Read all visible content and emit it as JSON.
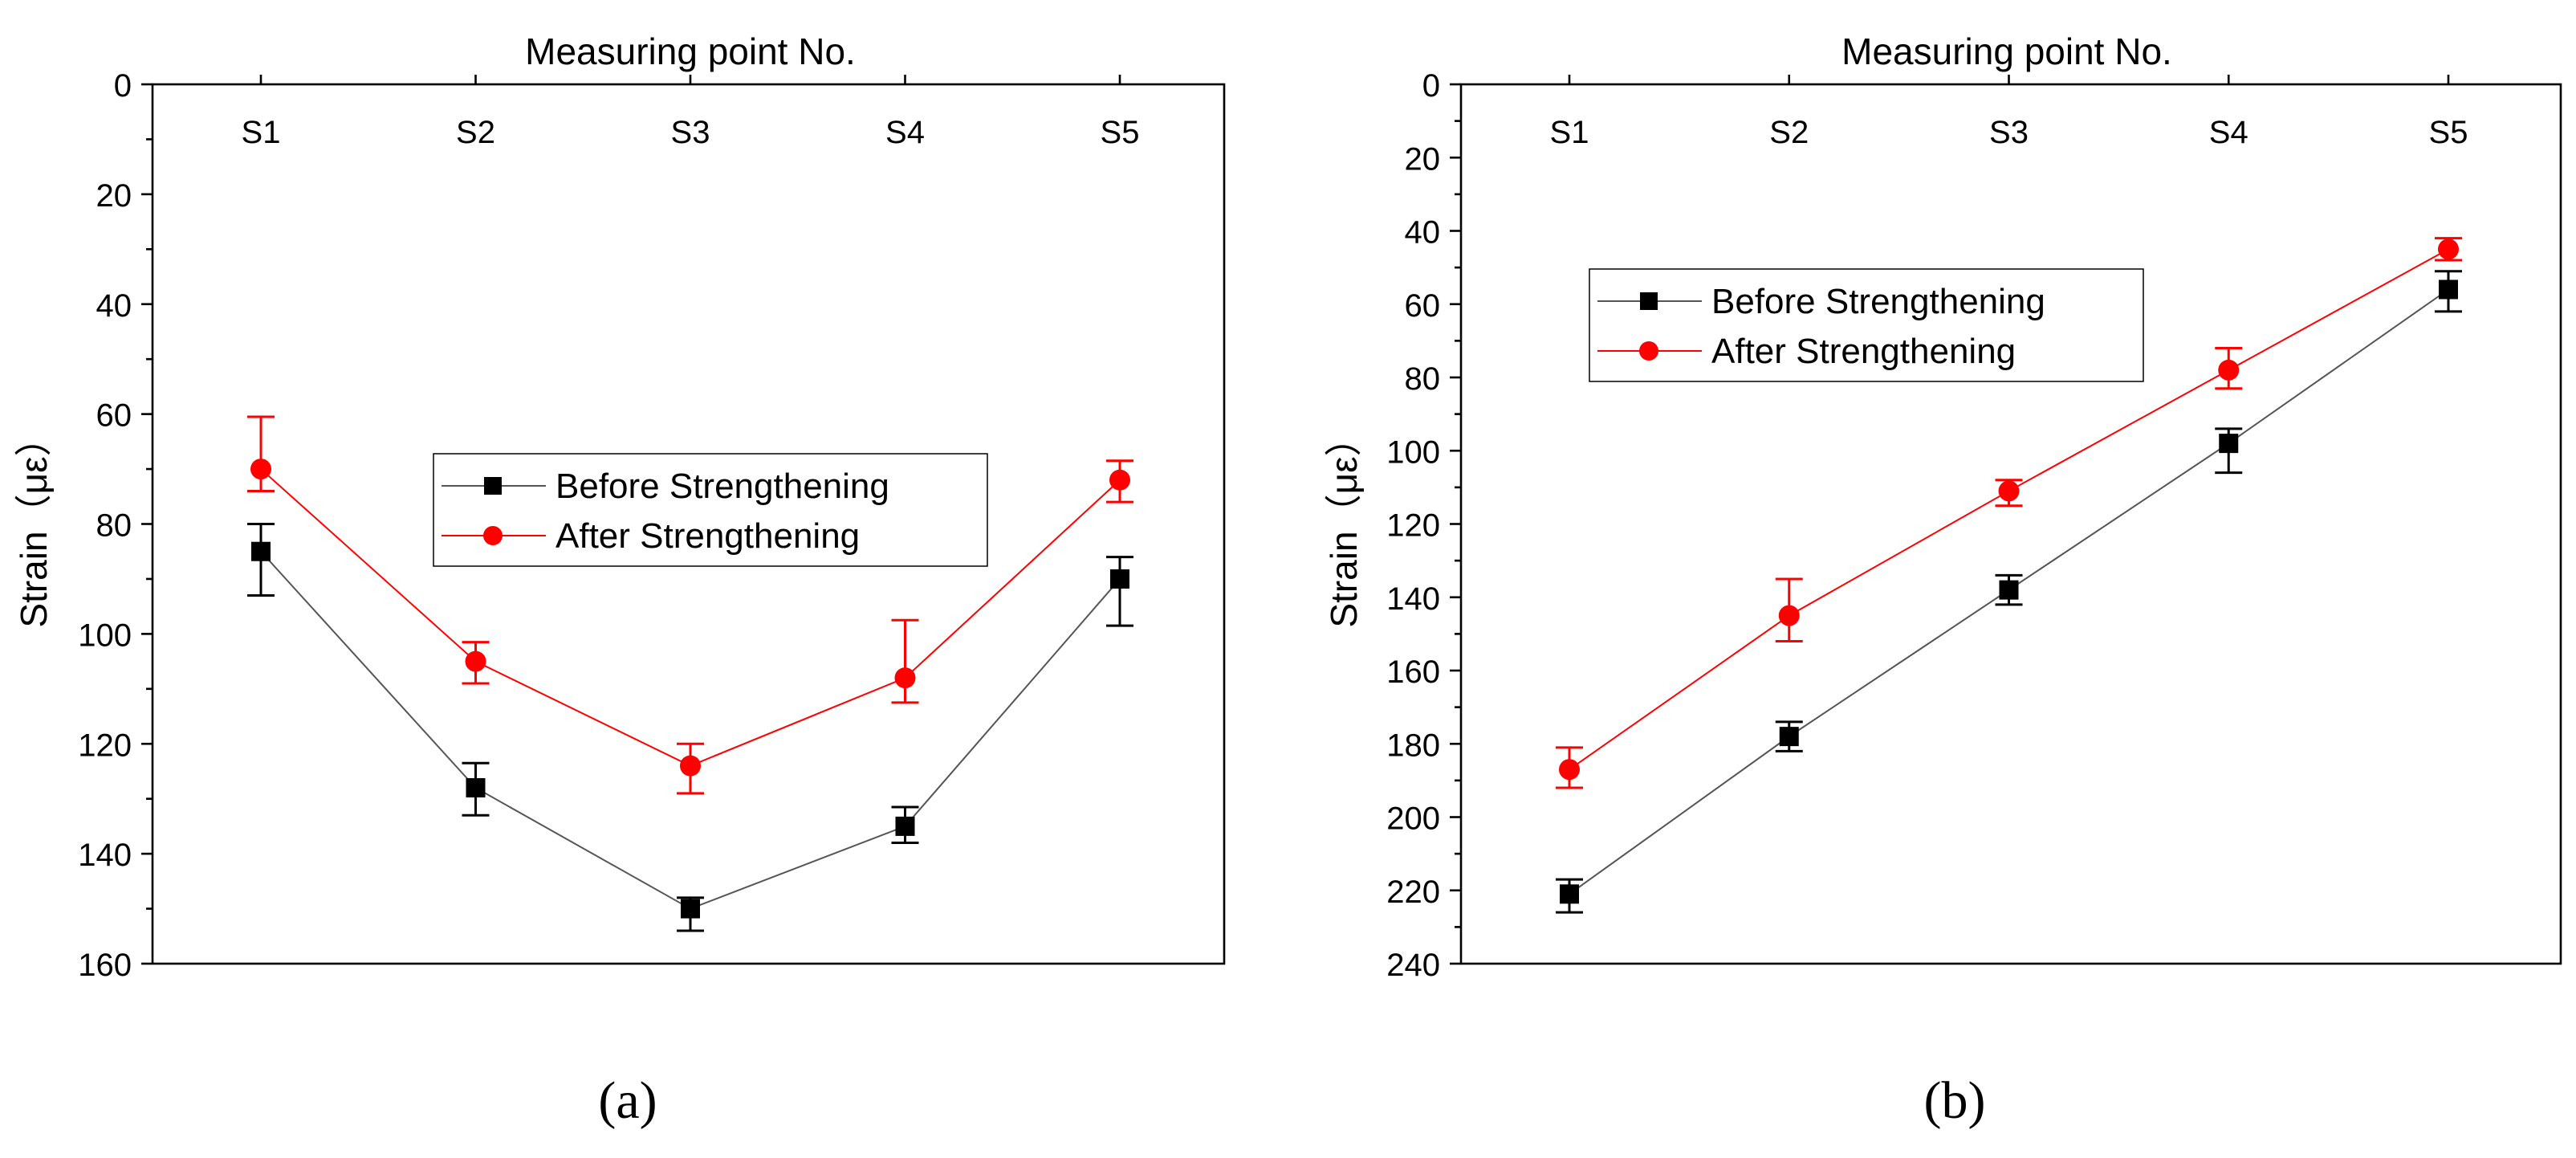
{
  "chart_data": [
    {
      "type": "line",
      "panel_label": "(a)",
      "title": "Measuring point No.",
      "xlabel": "Measuring point No.",
      "ylabel": "Strain（με）",
      "ylim": [
        0,
        160
      ],
      "y_inverted": true,
      "x_axis_position": "top",
      "yticks": [
        0,
        20,
        40,
        60,
        80,
        100,
        120,
        140,
        160
      ],
      "categories": [
        "S1",
        "S2",
        "S3",
        "S4",
        "S5"
      ],
      "legend_position": "center",
      "series": [
        {
          "name": "Before Strengthening",
          "marker": "square",
          "color": "#000000",
          "line_color": "#555555",
          "values": [
            85,
            128,
            150,
            135,
            90
          ],
          "err_low": [
            80,
            123.5,
            148,
            131.5,
            86
          ],
          "err_high": [
            93,
            133,
            154,
            138,
            98.5
          ]
        },
        {
          "name": "After Strengthening",
          "marker": "circle",
          "color": "#ff0000",
          "line_color": "#ff0000",
          "values": [
            70,
            105,
            124,
            108,
            72
          ],
          "err_low": [
            60.5,
            101.5,
            120,
            97.5,
            68.5
          ],
          "err_high": [
            74,
            109,
            129,
            112.5,
            76
          ]
        }
      ]
    },
    {
      "type": "line",
      "panel_label": "(b)",
      "title": "Measuring point No.",
      "xlabel": "Measuring point No.",
      "ylabel": "Strain（με）",
      "ylim": [
        0,
        240
      ],
      "y_inverted": true,
      "x_axis_position": "top",
      "yticks": [
        0,
        20,
        40,
        60,
        80,
        100,
        120,
        140,
        160,
        180,
        200,
        220,
        240
      ],
      "categories": [
        "S1",
        "S2",
        "S3",
        "S4",
        "S5"
      ],
      "legend_position": "top-left",
      "series": [
        {
          "name": "Before Strengthening",
          "marker": "square",
          "color": "#000000",
          "line_color": "#555555",
          "values": [
            221,
            178,
            138,
            98,
            56
          ],
          "err_low": [
            217,
            174,
            134,
            94,
            51
          ],
          "err_high": [
            226,
            182,
            142,
            106,
            62
          ]
        },
        {
          "name": "After Strengthening",
          "marker": "circle",
          "color": "#ff0000",
          "line_color": "#ff0000",
          "values": [
            187,
            145,
            111,
            78,
            45
          ],
          "err_low": [
            181,
            135,
            108,
            72,
            42
          ],
          "err_high": [
            192,
            152,
            115,
            83,
            48
          ]
        }
      ]
    }
  ]
}
